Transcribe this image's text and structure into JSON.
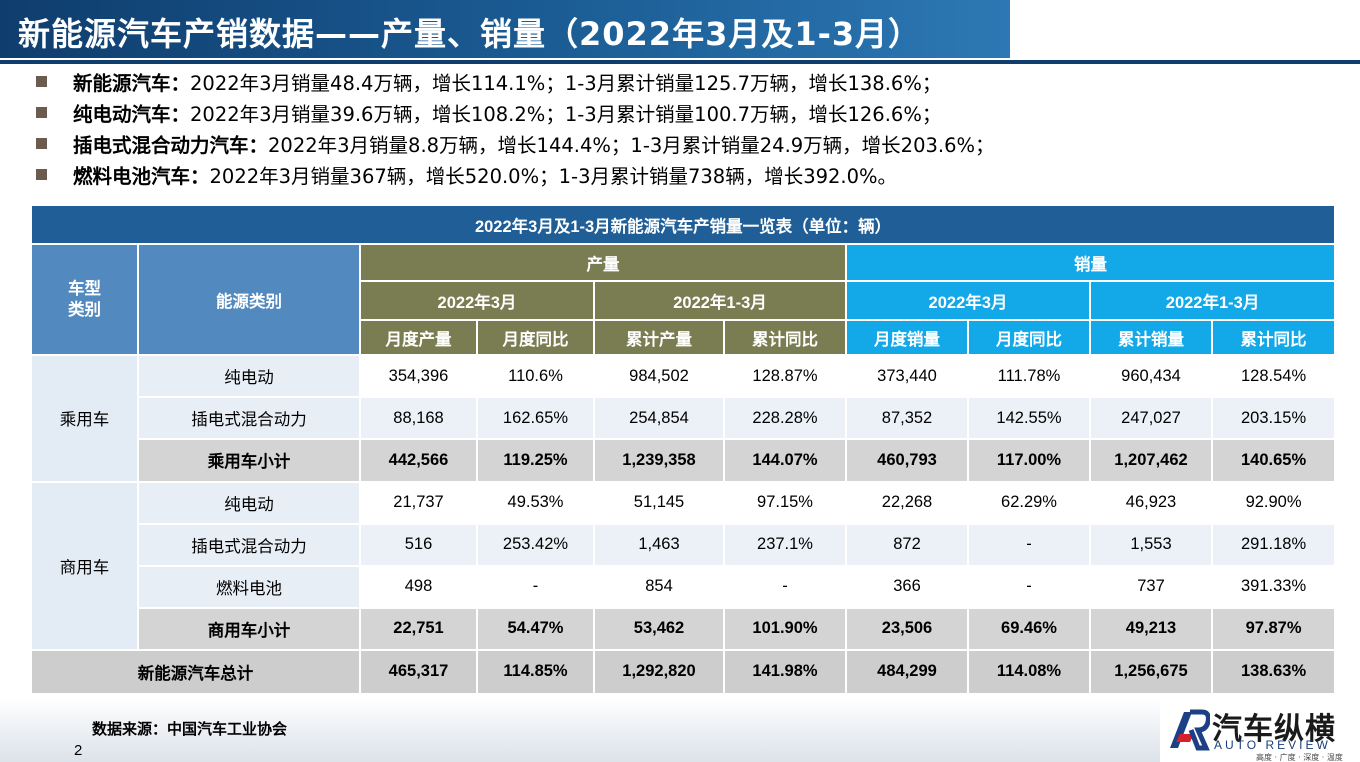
{
  "title": "新能源汽车产销数据——产量、销量（2022年3月及1-3月）",
  "bullets": [
    {
      "label": "新能源汽车：",
      "text": "2022年3月销量48.4万辆，增长114.1%；1-3月累计销量125.7万辆，增长138.6%；"
    },
    {
      "label": "纯电动汽车：",
      "text": "2022年3月销量39.6万辆，增长108.2%；1-3月累计销量100.7万辆，增长126.6%；"
    },
    {
      "label": "插电式混合动力汽车：",
      "text": "2022年3月销量8.8万辆，增长144.4%；1-3月累计销量24.9万辆，增长203.6%；"
    },
    {
      "label": "燃料电池汽车：",
      "text": "2022年3月销量367辆，增长520.0%；1-3月累计销量738辆，增长392.0%。"
    }
  ],
  "table": {
    "caption": "2022年3月及1-3月新能源汽车产销量一览表（单位：辆）",
    "col_vehicle": "车型\n类别",
    "col_energy": "能源类别",
    "group_production": "产量",
    "group_sales": "销量",
    "period_month": "2022年3月",
    "period_cumulative": "2022年1-3月",
    "sub_headers": [
      "月度产量",
      "月度同比",
      "累计产量",
      "累计同比",
      "月度销量",
      "月度同比",
      "累计销量",
      "累计同比"
    ],
    "passenger": {
      "category": "乘用车",
      "rows": [
        {
          "energy": "纯电动",
          "values": [
            "354,396",
            "110.6%",
            "984,502",
            "128.87%",
            "373,440",
            "111.78%",
            "960,434",
            "128.54%"
          ]
        },
        {
          "energy": "插电式混合动力",
          "values": [
            "88,168",
            "162.65%",
            "254,854",
            "228.28%",
            "87,352",
            "142.55%",
            "247,027",
            "203.15%"
          ]
        }
      ],
      "subtotal": {
        "energy": "乘用车小计",
        "values": [
          "442,566",
          "119.25%",
          "1,239,358",
          "144.07%",
          "460,793",
          "117.00%",
          "1,207,462",
          "140.65%"
        ]
      }
    },
    "commercial": {
      "category": "商用车",
      "rows": [
        {
          "energy": "纯电动",
          "values": [
            "21,737",
            "49.53%",
            "51,145",
            "97.15%",
            "22,268",
            "62.29%",
            "46,923",
            "92.90%"
          ]
        },
        {
          "energy": "插电式混合动力",
          "values": [
            "516",
            "253.42%",
            "1,463",
            "237.1%",
            "872",
            "-",
            "1,553",
            "291.18%"
          ]
        },
        {
          "energy": "燃料电池",
          "values": [
            "498",
            "-",
            "854",
            "-",
            "366",
            "-",
            "737",
            "391.33%"
          ]
        }
      ],
      "subtotal": {
        "energy": "商用车小计",
        "values": [
          "22,751",
          "54.47%",
          "53,462",
          "101.90%",
          "23,506",
          "69.46%",
          "49,213",
          "97.87%"
        ]
      }
    },
    "total": {
      "label": "新能源汽车总计",
      "values": [
        "465,317",
        "114.85%",
        "1,292,820",
        "141.98%",
        "484,299",
        "114.08%",
        "1,256,675",
        "138.63%"
      ]
    }
  },
  "source": "数据来源：中国汽车工业协会",
  "page_number": "2",
  "logo": {
    "name": "汽车纵横",
    "english": "AUTO REVIEW",
    "tagline": "高度 · 广度 · 深度 · 温度",
    "icon": "ar-logo-icon"
  },
  "colors": {
    "title_bg": "#0f3d6e",
    "header_blue": "#5289be",
    "production_olive": "#7a7d52",
    "sales_cyan": "#13a8e8"
  }
}
